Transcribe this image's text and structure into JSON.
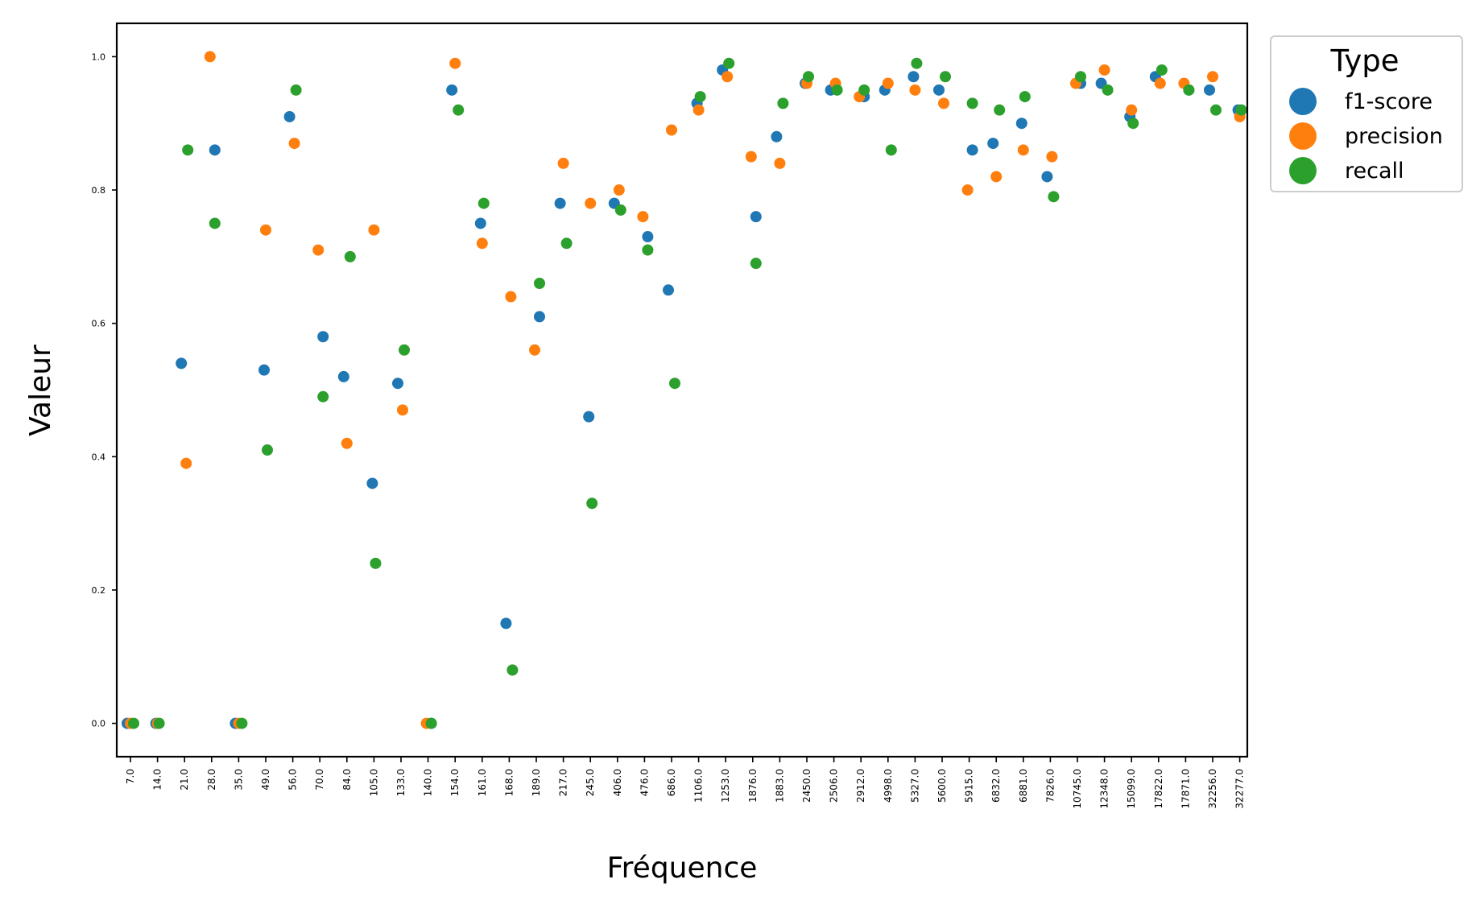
{
  "chart_data": {
    "type": "scatter",
    "title": "",
    "xlabel": "Fréquence",
    "ylabel": "Valeur",
    "ylim": [
      -0.05,
      1.05
    ],
    "yticks": [
      "0.0",
      "0.2",
      "0.4",
      "0.6",
      "0.8",
      "1.0"
    ],
    "grid": false,
    "legend": {
      "title": "Type",
      "position": "top-right, outside plot"
    },
    "categories": [
      "7.0",
      "14.0",
      "21.0",
      "28.0",
      "35.0",
      "49.0",
      "56.0",
      "70.0",
      "84.0",
      "105.0",
      "133.0",
      "140.0",
      "154.0",
      "161.0",
      "168.0",
      "189.0",
      "217.0",
      "245.0",
      "406.0",
      "476.0",
      "686.0",
      "1106.0",
      "1253.0",
      "1876.0",
      "1883.0",
      "2450.0",
      "2506.0",
      "2912.0",
      "4998.0",
      "5327.0",
      "5600.0",
      "5915.0",
      "6832.0",
      "6881.0",
      "7826.0",
      "10745.0",
      "12348.0",
      "15099.0",
      "17822.0",
      "17871.0",
      "32256.0",
      "32277.0"
    ],
    "series": [
      {
        "name": "f1-score",
        "color": "#1f77b4",
        "values": [
          0.0,
          0.0,
          0.54,
          0.86,
          0.0,
          0.53,
          0.91,
          0.58,
          0.52,
          0.36,
          0.51,
          0.0,
          0.95,
          0.75,
          0.15,
          0.61,
          0.78,
          0.46,
          0.78,
          0.73,
          0.65,
          0.93,
          0.98,
          0.76,
          0.88,
          0.96,
          0.95,
          0.94,
          0.95,
          0.97,
          0.95,
          0.86,
          0.87,
          0.9,
          0.82,
          0.96,
          0.96,
          0.91,
          0.97,
          0.95,
          0.95,
          0.92
        ]
      },
      {
        "name": "precision",
        "color": "#ff7f0e",
        "values": [
          0.0,
          0.0,
          0.39,
          1.0,
          0.0,
          0.74,
          0.87,
          0.71,
          0.42,
          0.74,
          0.47,
          0.0,
          0.99,
          0.72,
          0.64,
          0.56,
          0.84,
          0.78,
          0.8,
          0.76,
          0.89,
          0.92,
          0.97,
          0.85,
          0.84,
          0.96,
          0.96,
          0.94,
          0.96,
          0.95,
          0.93,
          0.8,
          0.82,
          0.86,
          0.85,
          0.96,
          0.98,
          0.92,
          0.96,
          0.96,
          0.97,
          0.91
        ]
      },
      {
        "name": "recall",
        "color": "#2ca02c",
        "values": [
          0.0,
          0.0,
          0.86,
          0.75,
          0.0,
          0.41,
          0.95,
          0.49,
          0.7,
          0.24,
          0.56,
          0.0,
          0.92,
          0.78,
          0.08,
          0.66,
          0.72,
          0.33,
          0.77,
          0.71,
          0.51,
          0.94,
          0.99,
          0.69,
          0.93,
          0.97,
          0.95,
          0.95,
          0.86,
          0.99,
          0.97,
          0.93,
          0.92,
          0.94,
          0.79,
          0.97,
          0.95,
          0.9,
          0.98,
          0.95,
          0.92,
          0.92
        ]
      }
    ]
  }
}
